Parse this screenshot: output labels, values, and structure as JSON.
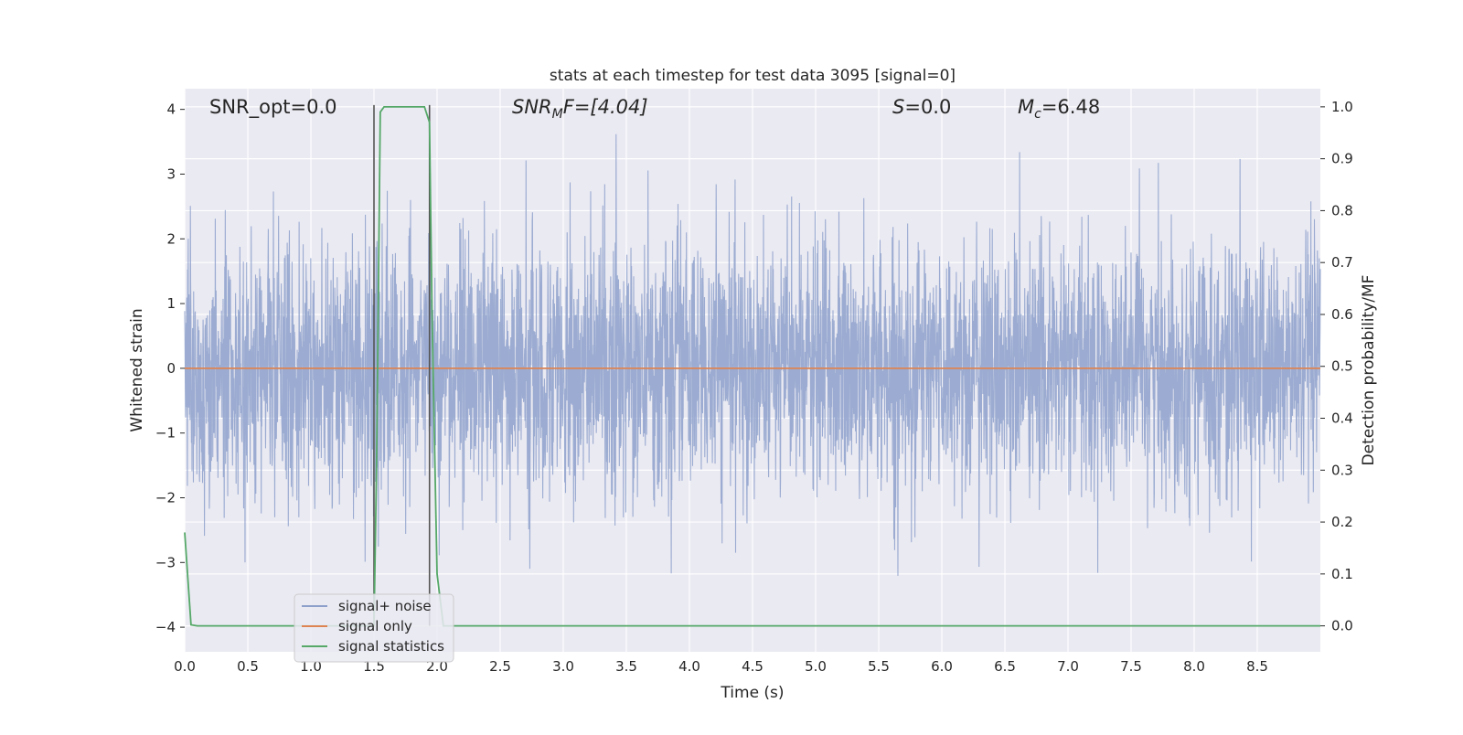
{
  "chart_data": {
    "type": "line",
    "title": "stats at each timestep for test data 3095 [signal=0]",
    "xlabel": "Time (s)",
    "ylabel": "Whitened strain",
    "y2label": "Detection probability/MF",
    "xlim": [
      0.0,
      9.0
    ],
    "ylim": [
      -4.38,
      4.32
    ],
    "y2lim": [
      -0.05,
      1.035
    ],
    "xticks": [
      "0.0",
      "0.5",
      "1.0",
      "1.5",
      "2.0",
      "2.5",
      "3.0",
      "3.5",
      "4.0",
      "4.5",
      "5.0",
      "5.5",
      "6.0",
      "6.5",
      "7.0",
      "7.5",
      "8.0",
      "8.5"
    ],
    "yticks": [
      "4",
      "3",
      "2",
      "1",
      "0",
      "−1",
      "−2",
      "−3",
      "−4"
    ],
    "y2ticks": [
      "1.0",
      "0.9",
      "0.8",
      "0.7",
      "0.6",
      "0.5",
      "0.4",
      "0.3",
      "0.2",
      "0.1",
      "0.0"
    ],
    "grid": true,
    "legend_position": "lower-left",
    "annotations": {
      "snr_opt": "SNR_opt=0.0",
      "snr_mf_base": "SNR",
      "snr_mf_sub": "M",
      "snr_mf_rest": "F=[4.04]",
      "s_var": "S",
      "s_rest": "=0.0",
      "mc_base": "M",
      "mc_sub": "c",
      "mc_rest": "=6.48"
    },
    "series": [
      {
        "name": "signal+ noise",
        "color": "#8da0cb",
        "description_values": "dense Gaussian noise, approx. standard deviation 1, peaks up to about 3.7 and down to about -3.9"
      },
      {
        "name": "signal only",
        "color": "#dd8452",
        "x": [
          0.0,
          9.0
        ],
        "y": [
          0.0,
          0.0
        ]
      },
      {
        "name": "signal statistics",
        "color": "#55a868",
        "axis": "right",
        "x": [
          0.0,
          0.05,
          0.1,
          1.5,
          1.52,
          1.55,
          1.58,
          1.6,
          1.9,
          1.94,
          1.96,
          2.0,
          2.05,
          9.0
        ],
        "y": [
          0.18,
          0.002,
          0.0,
          0.0,
          0.3,
          0.99,
          1.0,
          1.0,
          1.0,
          0.97,
          0.6,
          0.1,
          0.0,
          0.0
        ]
      }
    ],
    "vertical_markers": [
      {
        "x": 1.5,
        "color": "#555555"
      },
      {
        "x": 1.94,
        "color": "#555555"
      }
    ]
  }
}
